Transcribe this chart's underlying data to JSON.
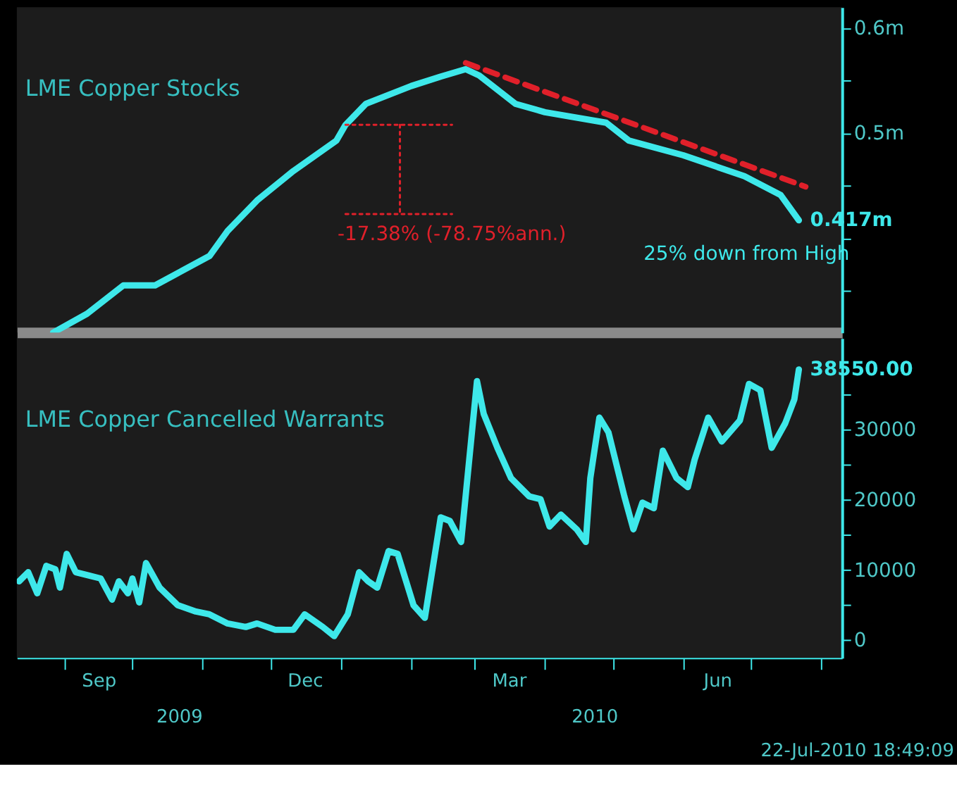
{
  "chart_data": [
    {
      "type": "line",
      "xlim": [
        "2009-08-11",
        "2010-08-10"
      ],
      "ylim": [
        0.31,
        0.62
      ],
      "yticks": [
        {
          "value": 0.35,
          "label": null
        },
        {
          "value": 0.4,
          "label": null
        },
        {
          "value": 0.45,
          "label": null
        },
        {
          "value": 0.5,
          "label": "0.5m"
        },
        {
          "value": 0.55,
          "label": null
        },
        {
          "value": 0.6,
          "label": "0.6m"
        }
      ],
      "tick_labels": "y",
      "grid": false,
      "series": [
        {
          "name": "LME Copper Stocks",
          "color": "#3ee8ea",
          "x": [
            "2009-08-27",
            "2009-09-11",
            "2009-09-27",
            "2009-10-11",
            "2009-11-04",
            "2009-11-12",
            "2009-11-25",
            "2009-12-11",
            "2009-12-30",
            "2010-01-03",
            "2010-01-12",
            "2010-02-01",
            "2010-02-14",
            "2010-02-25",
            "2010-03-03",
            "2010-03-19",
            "2010-04-01",
            "2010-04-28",
            "2010-05-08",
            "2010-06-01",
            "2010-06-28",
            "2010-07-14",
            "2010-07-22"
          ],
          "values": [
            0.31,
            0.328,
            0.355,
            0.355,
            0.383,
            0.407,
            0.436,
            0.464,
            0.493,
            0.508,
            0.528,
            0.545,
            0.554,
            0.561,
            0.555,
            0.528,
            0.52,
            0.51,
            0.493,
            0.479,
            0.459,
            0.441,
            0.417
          ],
          "value_labels": [
            null,
            null,
            null,
            null,
            null,
            null,
            null,
            null,
            null,
            null,
            null,
            null,
            null,
            null,
            null,
            null,
            null,
            null,
            null,
            null,
            null,
            null,
            "0.417m"
          ]
        },
        {
          "type": "line",
          "color": "#e0202a",
          "line_style": "dashed",
          "x": [
            "2010-02-25",
            "2010-07-25"
          ],
          "values": [
            0.567,
            0.449
          ]
        },
        {
          "type": "line",
          "color": "#e0202a",
          "line_style": "dotted",
          "x": [
            "2010-01-03",
            "2010-02-19"
          ],
          "values": [
            0.508,
            0.508
          ]
        },
        {
          "type": "line",
          "color": "#e0202a",
          "line_style": "dotted",
          "x": [
            "2010-01-03",
            "2010-02-19"
          ],
          "values": [
            0.423,
            0.423
          ]
        },
        {
          "type": "line",
          "color": "#e0202a",
          "line_style": "dotted",
          "x": [
            "2010-01-27",
            "2010-01-27"
          ],
          "values": [
            0.508,
            0.423
          ]
        }
      ],
      "annotations": [
        "-17.38% (-78.75%ann.)",
        "25% down from High"
      ]
    },
    {
      "type": "line",
      "xlim": [
        "2009-08-11",
        "2010-08-10"
      ],
      "ylim": [
        -2500,
        43000
      ],
      "yticks": [
        0,
        {
          "value": 5000,
          "label": null
        },
        10000,
        {
          "value": 15000,
          "label": null
        },
        20000,
        {
          "value": 25000,
          "label": null
        },
        30000,
        {
          "value": 35000,
          "label": null
        }
      ],
      "xticks": [
        {
          "value": "2009-09-01",
          "label": null
        },
        {
          "value": "2009-09-16",
          "label": "Sep"
        },
        {
          "value": "2009-10-01",
          "label": null
        },
        {
          "value": "2009-11-01",
          "label": null
        },
        {
          "value": "2009-12-01",
          "label": null
        },
        {
          "value": "2009-12-16",
          "label": "Dec"
        },
        {
          "value": "2010-01-01",
          "label": null
        },
        {
          "value": "2010-02-01",
          "label": null
        },
        {
          "value": "2010-03-01",
          "label": null
        },
        {
          "value": "2010-03-16",
          "label": "Mar"
        },
        {
          "value": "2010-04-01",
          "label": null
        },
        {
          "value": "2010-05-01",
          "label": null
        },
        {
          "value": "2010-06-01",
          "label": null
        },
        {
          "value": "2010-06-16",
          "label": "Jun"
        },
        {
          "value": "2010-07-01",
          "label": null
        },
        {
          "value": "2010-08-01",
          "label": null
        }
      ],
      "grid": false,
      "series": [
        {
          "name": "LME Copper Cancelled Warrants",
          "color": "#3ee8ea",
          "x": [
            "2009-08-12",
            "2009-08-16",
            "2009-08-20",
            "2009-08-24",
            "2009-08-28",
            "2009-08-30",
            "2009-09-02",
            "2009-09-06",
            "2009-09-11",
            "2009-09-17",
            "2009-09-22",
            "2009-09-25",
            "2009-09-29",
            "2009-10-01",
            "2009-10-04",
            "2009-10-07",
            "2009-10-13",
            "2009-10-21",
            "2009-10-29",
            "2009-11-04",
            "2009-11-12",
            "2009-11-20",
            "2009-11-25",
            "2009-12-03",
            "2009-12-11",
            "2009-12-16",
            "2009-12-24",
            "2009-12-29",
            "2010-01-04",
            "2010-01-09",
            "2010-01-13",
            "2010-01-17",
            "2010-01-22",
            "2010-01-26",
            "2010-02-02",
            "2010-02-07",
            "2010-02-14",
            "2010-02-18",
            "2010-02-23",
            "2010-03-02",
            "2010-03-05",
            "2010-03-11",
            "2010-03-17",
            "2010-03-25",
            "2010-03-30",
            "2010-04-03",
            "2010-04-08",
            "2010-04-15",
            "2010-04-19",
            "2010-04-21",
            "2010-04-25",
            "2010-04-29",
            "2010-05-06",
            "2010-05-10",
            "2010-05-14",
            "2010-05-19",
            "2010-05-23",
            "2010-05-29",
            "2010-06-03",
            "2010-06-06",
            "2010-06-12",
            "2010-06-18",
            "2010-06-26",
            "2010-06-30",
            "2010-07-05",
            "2010-07-10",
            "2010-07-16",
            "2010-07-20",
            "2010-07-22"
          ],
          "values": [
            8400,
            9700,
            6700,
            10600,
            10100,
            7500,
            12300,
            9700,
            9300,
            8800,
            5800,
            8400,
            6700,
            8800,
            5400,
            11000,
            7500,
            5000,
            4100,
            3700,
            2400,
            1900,
            2400,
            1500,
            1500,
            3700,
            1900,
            600,
            3700,
            9700,
            8400,
            7500,
            12700,
            12300,
            5000,
            3200,
            17500,
            17000,
            14000,
            36900,
            32200,
            27400,
            23100,
            20500,
            20100,
            16200,
            17900,
            15800,
            14000,
            23100,
            31700,
            29600,
            20500,
            15800,
            19600,
            18800,
            27000,
            23100,
            21800,
            25700,
            31700,
            28300,
            31300,
            36500,
            35600,
            27400,
            30900,
            34300,
            38550
          ],
          "value_labels": [
            null,
            null,
            null,
            null,
            null,
            null,
            null,
            null,
            null,
            null,
            null,
            null,
            null,
            null,
            null,
            null,
            null,
            null,
            null,
            null,
            null,
            null,
            null,
            null,
            null,
            null,
            null,
            null,
            null,
            null,
            null,
            null,
            null,
            null,
            null,
            null,
            null,
            null,
            null,
            null,
            null,
            null,
            null,
            null,
            null,
            null,
            null,
            null,
            null,
            null,
            null,
            null,
            null,
            null,
            null,
            null,
            null,
            null,
            null,
            null,
            null,
            null,
            null,
            null,
            null,
            null,
            null,
            null,
            "38550.00"
          ]
        }
      ],
      "annotations": [
        "2009",
        "2010",
        "22-Jul-2010 18:49:09"
      ]
    }
  ]
}
